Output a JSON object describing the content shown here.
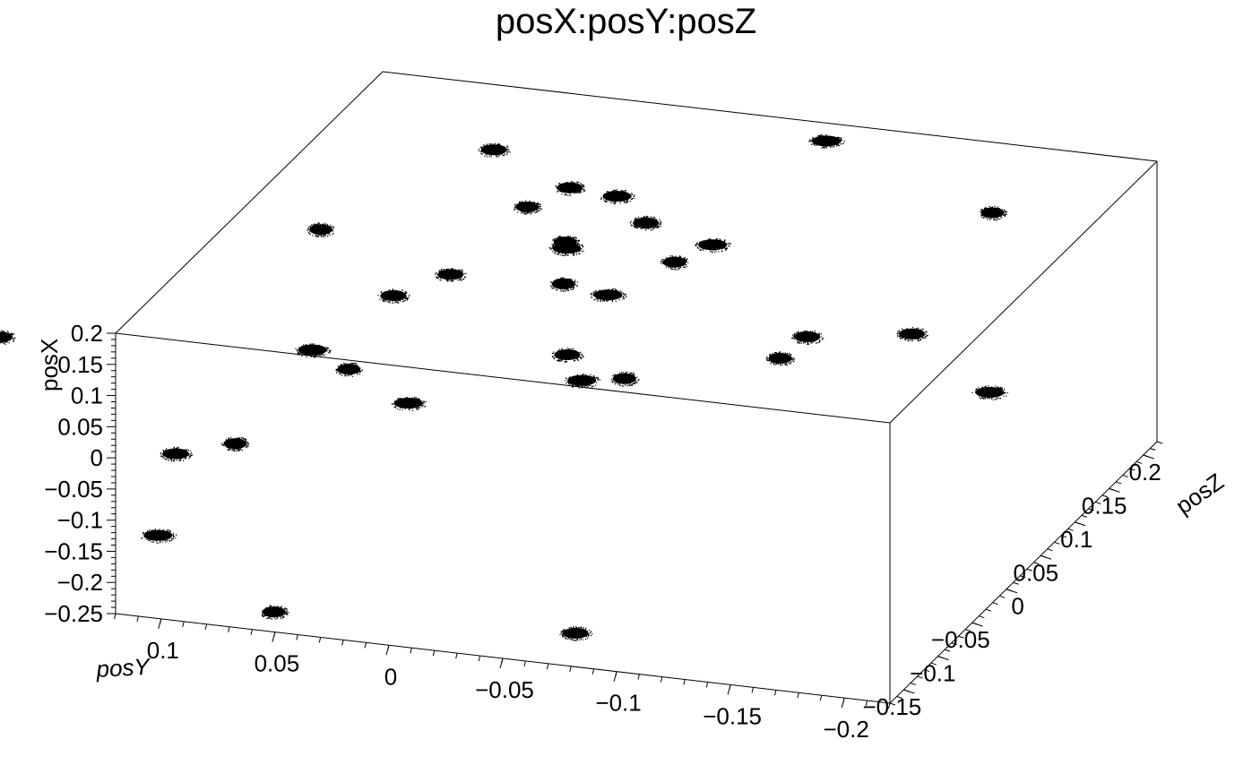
{
  "chart_data": {
    "type": "scatter",
    "title": "posX:posY:posZ",
    "xlabel": "posY",
    "ylabel": "posX",
    "zlabel": "posZ",
    "xlim": [
      0.12,
      -0.22
    ],
    "ylim": [
      -0.25,
      0.2
    ],
    "zlim": [
      -0.17,
      0.22
    ],
    "x_ticks": [
      "0.1",
      "0.05",
      "0",
      "−0.05",
      "−0.1",
      "−0.15",
      "−0.2"
    ],
    "y_ticks": [
      "−0.25",
      "−0.2",
      "−0.15",
      "−0.1",
      "−0.05",
      "0",
      "0.05",
      "0.1",
      "0.15",
      "0.2"
    ],
    "z_ticks": [
      "−0.15",
      "−0.1",
      "−0.05",
      "0",
      "0.05",
      "0.1",
      "0.15",
      "0.2"
    ],
    "marker_color": "#000000",
    "clusters": [
      {
        "posY": 0.081,
        "posZ": 0.0,
        "posX": 0.2
      },
      {
        "posY": 0.045,
        "posZ": 0.133,
        "posX": 0.2
      },
      {
        "posY": -0.082,
        "posZ": 0.196,
        "posX": 0.2
      },
      {
        "posY": -0.176,
        "posZ": 0.126,
        "posX": 0.2
      },
      {
        "posY": 0.0,
        "posZ": 0.094,
        "posX": 0.2
      },
      {
        "posY": -0.022,
        "posZ": 0.09,
        "posX": 0.2
      },
      {
        "posY": 0.009,
        "posZ": 0.062,
        "posX": 0.2
      },
      {
        "posY": -0.044,
        "posZ": 0.059,
        "posX": 0.2
      },
      {
        "posY": -0.079,
        "posZ": 0.04,
        "posX": 0.2
      },
      {
        "posY": -0.02,
        "posZ": 0.021,
        "posX": 0.2
      },
      {
        "posY": -0.193,
        "posZ": -0.048,
        "posX": 0.2
      },
      {
        "posY": -0.023,
        "posZ": 0.013,
        "posX": 0.2
      },
      {
        "posY": -0.071,
        "posZ": 0.011,
        "posX": 0.2
      },
      {
        "posY": 0.026,
        "posZ": -0.077,
        "posX": 0.2
      },
      {
        "posY": -0.247,
        "posZ": -0.114,
        "posX": 0.2
      },
      {
        "posY": -0.036,
        "posZ": -0.035,
        "posX": 0.2
      },
      {
        "posY": 0.012,
        "posZ": -0.04,
        "posX": 0.2
      },
      {
        "posY": -0.058,
        "posZ": -0.043,
        "posX": 0.2
      },
      {
        "posY": -0.151,
        "posZ": -0.101,
        "posX": 0.2
      },
      {
        "posY": -0.066,
        "posZ": -0.129,
        "posX": 0.2
      },
      {
        "posY": -0.082,
        "posZ": -0.161,
        "posX": 0.2
      },
      {
        "posY": -0.098,
        "posZ": -0.152,
        "posX": 0.2
      },
      {
        "posY": -0.153,
        "posZ": -0.068,
        "posX": 0.2
      },
      {
        "posY": -0.023,
        "posZ": -0.218,
        "posX": 0.2
      },
      {
        "posY": 0.014,
        "posZ": -0.182,
        "posX": 0.2
      },
      {
        "posY": 0.164,
        "posZ": -0.193,
        "posX": 0.2
      },
      {
        "posY": 0.036,
        "posZ": -0.162,
        "posX": 0.2
      },
      {
        "posY": 0.069,
        "posZ": -0.165,
        "posX": 0.039
      },
      {
        "posY": 0.108,
        "posZ": -0.122,
        "posX": -0.04
      },
      {
        "posY": 0.102,
        "posZ": -0.168,
        "posX": -0.119
      },
      {
        "posY": 0.036,
        "posZ": -0.218,
        "posX": -0.16
      },
      {
        "posY": -0.091,
        "posZ": -0.2,
        "posX": -0.16
      }
    ]
  }
}
